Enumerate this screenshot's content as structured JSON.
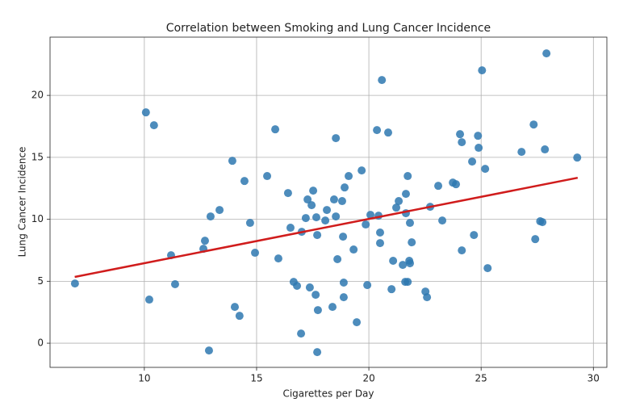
{
  "chart_data": {
    "type": "scatter",
    "title": "Correlation between Smoking and Lung Cancer Incidence",
    "xlabel": "Cigarettes per Day",
    "ylabel": "Lung Cancer Incidence",
    "x": [
      6.91,
      10.07,
      10.43,
      10.22,
      11.19,
      11.37,
      12.7,
      12.63,
      12.95,
      13.35,
      12.88,
      13.92,
      14.03,
      14.24,
      14.46,
      14.71,
      14.93,
      15.47,
      15.83,
      15.97,
      16.4,
      16.51,
      16.65,
      16.8,
      17.01,
      16.98,
      17.19,
      17.27,
      17.37,
      17.45,
      17.52,
      17.63,
      17.66,
      17.7,
      17.73,
      17.7,
      18.06,
      18.13,
      18.38,
      18.45,
      18.53,
      18.53,
      18.6,
      18.81,
      18.85,
      18.88,
      18.92,
      18.88,
      19.1,
      19.32,
      19.46,
      19.68,
      19.86,
      19.93,
      20.07,
      20.36,
      20.43,
      20.5,
      20.5,
      20.58,
      20.86,
      21.01,
      21.08,
      21.22,
      21.33,
      21.51,
      21.62,
      21.65,
      21.65,
      21.73,
      21.73,
      21.8,
      21.83,
      21.83,
      21.91,
      22.52,
      22.59,
      22.73,
      23.09,
      23.27,
      23.74,
      23.88,
      24.06,
      24.14,
      24.14,
      24.6,
      24.68,
      24.86,
      24.89,
      25.04,
      25.18,
      25.29,
      26.8,
      27.34,
      27.41,
      27.63,
      27.73,
      27.84,
      27.91,
      29.28
    ],
    "y": [
      4.82,
      18.63,
      17.59,
      3.52,
      7.1,
      4.76,
      8.27,
      7.62,
      10.23,
      10.75,
      -0.59,
      14.72,
      2.93,
      2.21,
      13.09,
      9.71,
      7.3,
      13.49,
      17.26,
      6.84,
      12.12,
      9.32,
      4.95,
      4.63,
      8.99,
      0.78,
      10.1,
      11.6,
      4.5,
      11.14,
      12.31,
      3.91,
      10.16,
      8.73,
      2.67,
      -0.72,
      9.9,
      10.75,
      2.93,
      11.6,
      16.55,
      10.23,
      6.78,
      11.47,
      8.6,
      3.71,
      12.57,
      4.89,
      13.49,
      7.56,
      1.69,
      13.94,
      9.58,
      4.69,
      10.36,
      17.2,
      10.29,
      8.93,
      8.08,
      21.24,
      17.0,
      4.36,
      6.65,
      10.94,
      11.47,
      6.32,
      4.95,
      10.49,
      12.05,
      13.49,
      4.95,
      6.65,
      6.45,
      9.71,
      8.14,
      4.17,
      3.71,
      11.01,
      12.7,
      9.9,
      12.96,
      12.83,
      16.87,
      16.22,
      7.49,
      14.66,
      8.73,
      16.74,
      15.77,
      22.02,
      14.07,
      6.06,
      15.44,
      17.65,
      8.4,
      9.84,
      9.77,
      15.64,
      23.39,
      14.98
    ],
    "color": "#2e78b0",
    "trend_line": {
      "x": [
        6.9,
        29.3
      ],
      "y": [
        5.35,
        13.35
      ],
      "color": "#d01c1c"
    },
    "xlim": [
      5.8,
      30.6
    ],
    "ylim": [
      -1.95,
      24.7
    ],
    "xticks": [
      10,
      15,
      20,
      25,
      30
    ],
    "yticks": [
      0,
      5,
      10,
      15,
      20
    ],
    "grid": true
  }
}
